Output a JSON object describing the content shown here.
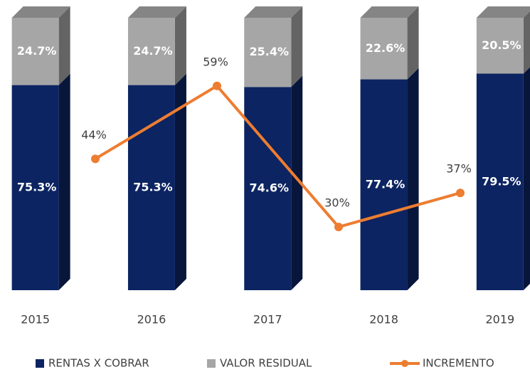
{
  "chart_data": {
    "type": "bar",
    "stacked": true,
    "categories": [
      "2015",
      "2016",
      "2017",
      "2018",
      "2019"
    ],
    "ylim": [
      0,
      100
    ],
    "y2lim": [
      17,
      73
    ],
    "series": [
      {
        "name": "RENTAS X COBRAR",
        "color": "#0c2461",
        "values": [
          75.3,
          75.3,
          74.6,
          77.4,
          79.5
        ],
        "value_labels": [
          "75.3%",
          "75.3%",
          "74.6%",
          "77.4%",
          "79.5%"
        ]
      },
      {
        "name": "VALOR RESIDUAL",
        "color": "#a6a6a6",
        "values": [
          24.7,
          24.7,
          25.4,
          22.6,
          20.5
        ],
        "value_labels": [
          "24.7%",
          "24.7%",
          "25.4%",
          "22.6%",
          "20.5%"
        ]
      },
      {
        "name": "INCREMENTO",
        "type": "line",
        "axis": "y2",
        "color": "#ed7d31",
        "values": [
          null,
          44,
          59,
          30,
          37
        ],
        "value_labels": [
          null,
          "44%",
          "59%",
          "30%",
          "37%"
        ]
      }
    ],
    "legend": "bottom"
  }
}
